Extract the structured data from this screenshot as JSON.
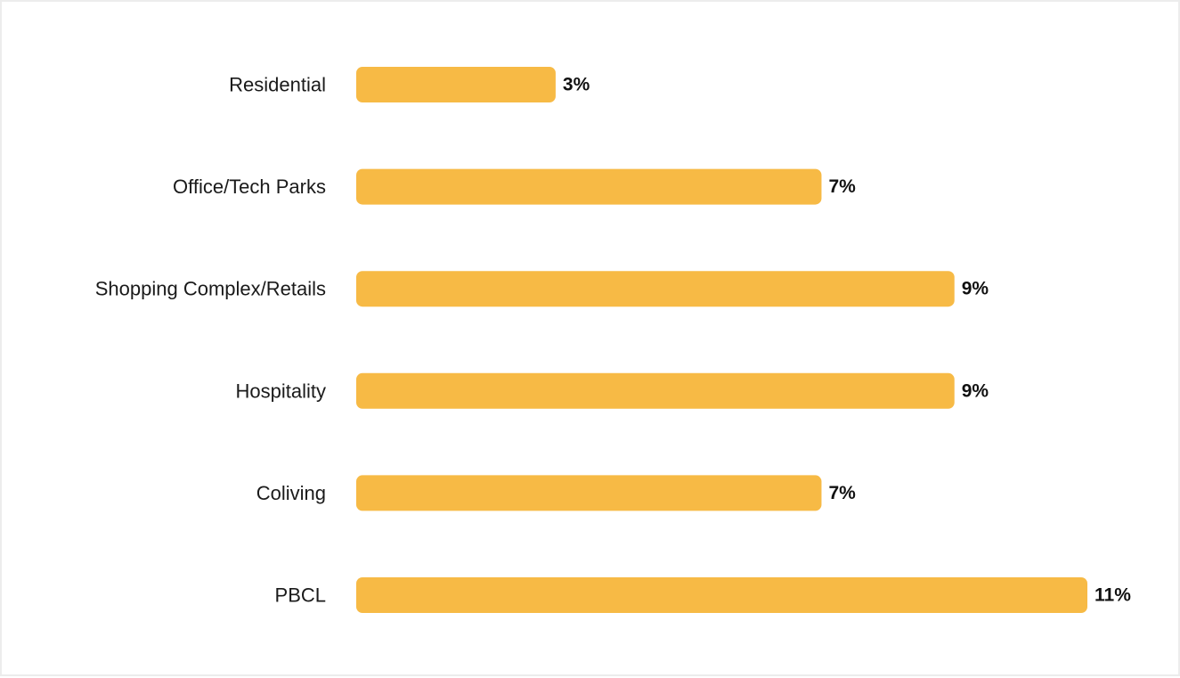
{
  "chart_data": {
    "type": "bar",
    "orientation": "horizontal",
    "categories": [
      "Residential",
      "Office/Tech Parks",
      "Shopping Complex/Retails",
      "Hospitality",
      "Coliving",
      "PBCL"
    ],
    "values": [
      3,
      7,
      9,
      9,
      7,
      11
    ],
    "value_labels": [
      "3%",
      "7%",
      "9%",
      "9%",
      "7%",
      "11%"
    ],
    "xlim": [
      0,
      11
    ],
    "grid": false,
    "legend": "none",
    "bar_color": "#F7BA45"
  }
}
